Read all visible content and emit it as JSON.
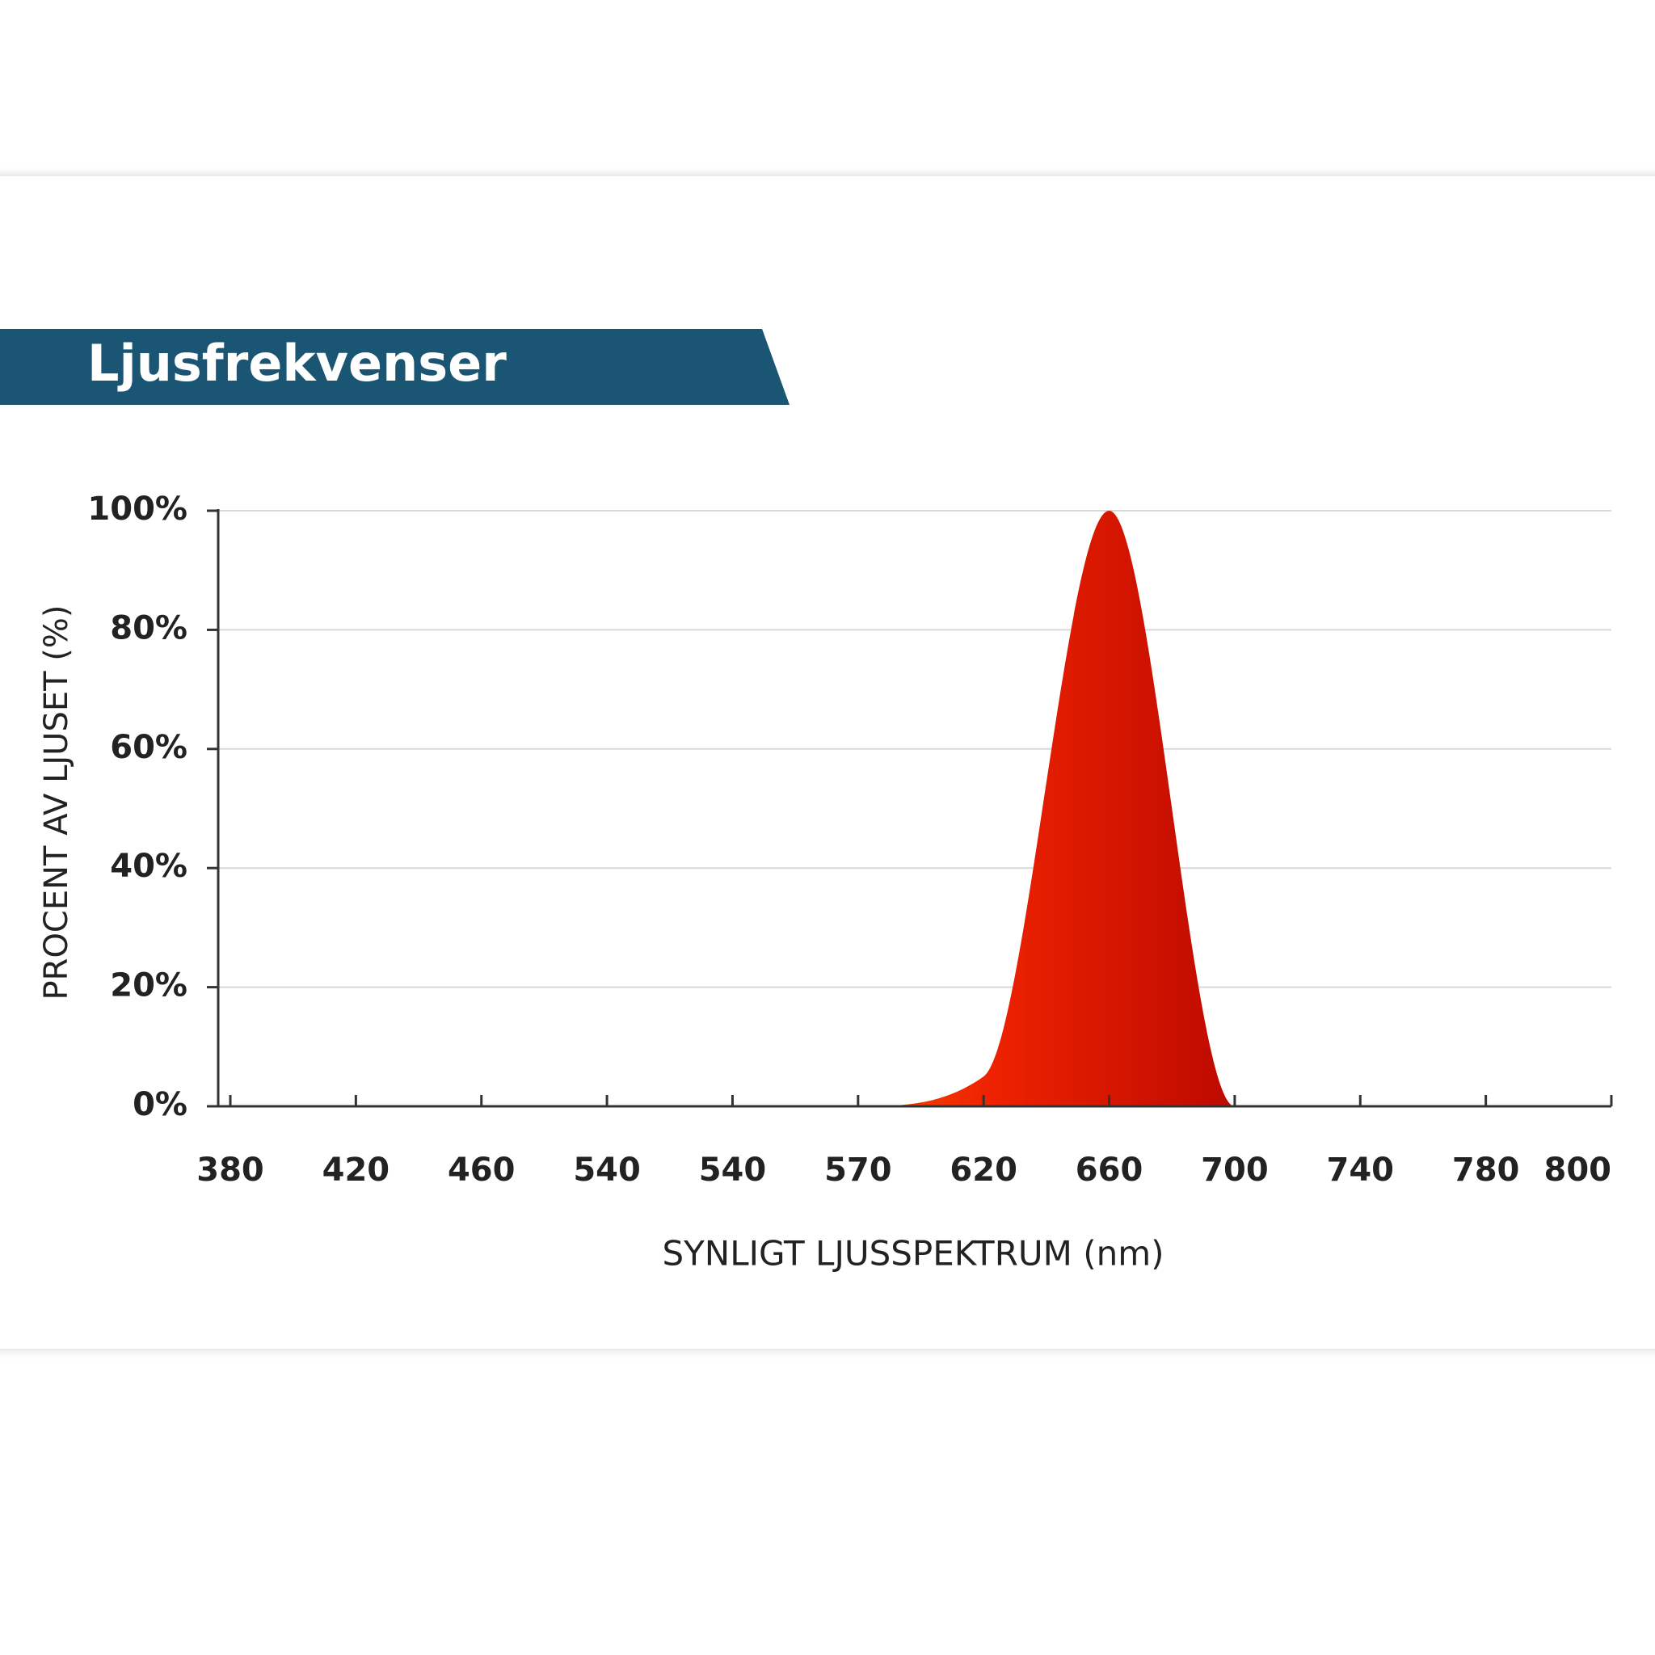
{
  "title": "Ljusfrekvenser",
  "chart_data": {
    "type": "area",
    "x_label": "SYNLIGT LJUSSPEKTRUM (nm)",
    "y_label": "PROCENT AV LJUSET (%)",
    "categories": [
      "380",
      "420",
      "460",
      "540",
      "540",
      "570",
      "620",
      "660",
      "700",
      "740",
      "780",
      "800"
    ],
    "values": [
      0,
      0,
      0,
      0,
      0,
      0,
      5,
      100,
      0,
      0,
      0,
      0
    ],
    "ylim": [
      0,
      100
    ],
    "yticks": [
      {
        "value": 0,
        "label": "0%"
      },
      {
        "value": 20,
        "label": "20%"
      },
      {
        "value": 40,
        "label": "40%"
      },
      {
        "value": 60,
        "label": "60%"
      },
      {
        "value": 80,
        "label": "80%"
      },
      {
        "value": 100,
        "label": "100%"
      }
    ],
    "grid": true
  }
}
